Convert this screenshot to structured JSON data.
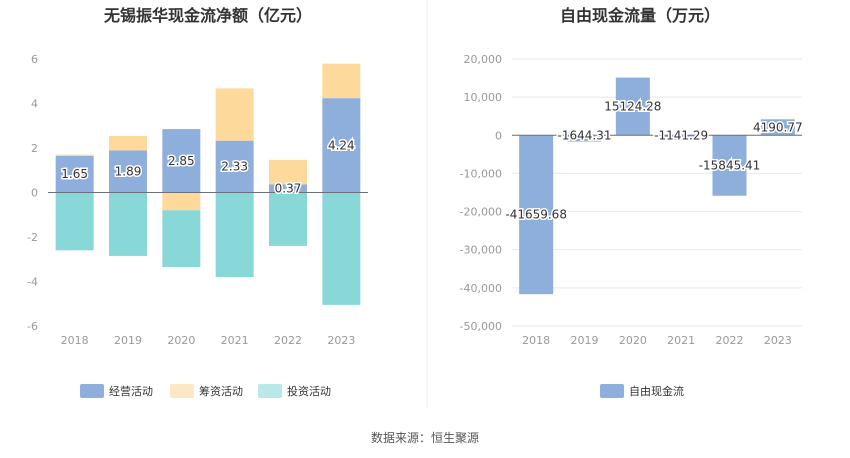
{
  "chart_data": [
    {
      "type": "bar",
      "stacked": true,
      "title": "无锡振华现金流净额（亿元）",
      "categories": [
        "2018",
        "2019",
        "2020",
        "2021",
        "2022",
        "2023"
      ],
      "ylim": [
        -6,
        6
      ],
      "yticks": [
        -6,
        -4,
        -2,
        0,
        2,
        4,
        6
      ],
      "grid": false,
      "legend": "bottom",
      "series": [
        {
          "name": "经营活动",
          "color": "#8eaedb",
          "values": [
            1.65,
            1.89,
            2.85,
            2.33,
            0.37,
            4.24
          ],
          "labels": [
            "1.65",
            "1.89",
            "2.85",
            "2.33",
            "0.37",
            "4.24"
          ]
        },
        {
          "name": "筹资活动",
          "color": "#fdd99b",
          "values": [
            0.05,
            0.65,
            -0.8,
            2.35,
            1.1,
            1.55
          ]
        },
        {
          "name": "投资活动",
          "color": "#88d8d8",
          "values": [
            -2.6,
            -2.85,
            -2.55,
            -3.8,
            -2.4,
            -5.05
          ]
        }
      ]
    },
    {
      "type": "bar",
      "title": "自由现金流量（万元）",
      "categories": [
        "2018",
        "2019",
        "2020",
        "2021",
        "2022",
        "2023"
      ],
      "ylim": [
        -50000,
        20000
      ],
      "yticks": [
        -50000,
        -40000,
        -30000,
        -20000,
        -10000,
        0,
        10000,
        20000
      ],
      "ytick_labels": [
        "-50,000",
        "-40,000",
        "-30,000",
        "-20,000",
        "-10,000",
        "0",
        "10,000",
        "20,000"
      ],
      "grid": true,
      "legend": "bottom",
      "series": [
        {
          "name": "自由现金流",
          "color": "#8eaedb",
          "values": [
            -41659.68,
            -1644.31,
            15124.28,
            -1141.29,
            -15845.41,
            4190.77
          ],
          "labels": [
            "-41659.68",
            "-1644.31",
            "15124.28",
            "-1141.29",
            "-15845.41",
            "4190.77"
          ]
        }
      ]
    }
  ],
  "source": "数据来源：恒生聚源"
}
